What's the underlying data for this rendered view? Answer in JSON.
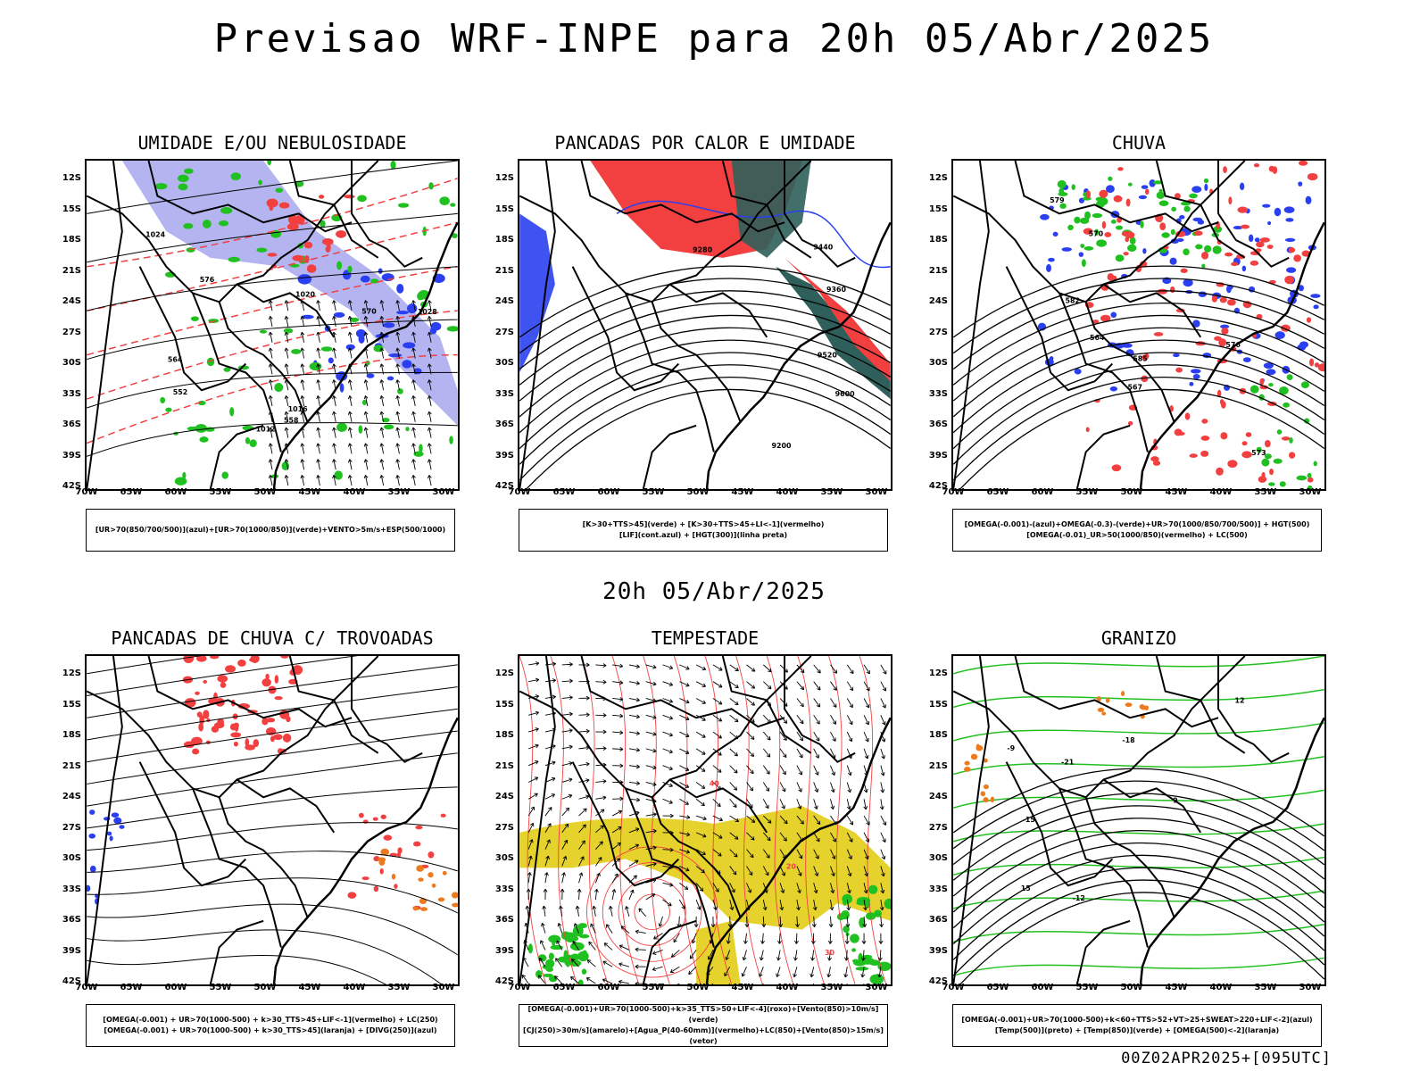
{
  "header": {
    "title": "Previsao WRF-INPE  para 20h 05/Abr/2025"
  },
  "mid_date": "20h 05/Abr/2025",
  "footer": "00Z02APR2025+[095UTC]",
  "axes": {
    "lat_labels": [
      "12S",
      "15S",
      "18S",
      "21S",
      "24S",
      "27S",
      "30S",
      "33S",
      "36S",
      "39S",
      "42S"
    ],
    "lon_labels": [
      "70W",
      "65W",
      "60W",
      "55W",
      "50W",
      "45W",
      "40W",
      "35W",
      "30W"
    ]
  },
  "panels": [
    {
      "title": "UMIDADE E/OU NEBULOSIDADE",
      "legend": [
        "[UR>70(850/700/500)](azul)+[UR>70(1000/850)](verde)+VENTO>5m/s+ESP(500/1000)"
      ],
      "labels": [
        "1012",
        "1016",
        "1020",
        "1024",
        "1028",
        "552",
        "558",
        "564",
        "570",
        "576"
      ]
    },
    {
      "title": "PANCADAS POR CALOR E UMIDADE",
      "legend": [
        "[K>30+TTS>45](verde)  +  [K>30+TTS>45+LI<-1](vermelho)",
        "[LIF](cont.azul)  +  [HGT(300)](linha preta)"
      ],
      "labels": [
        "9600",
        "9520",
        "9440",
        "9360",
        "9280",
        "9200"
      ]
    },
    {
      "title": "CHUVA",
      "legend": [
        "[OMEGA(-0.001)-(azul)+OMEGA(-0.3)-(verde)+UR>70(1000/850/700/500)]  +  HGT(500)",
        "[OMEGA(-0.01)_UR>50(1000/850)(vermelho)  +  LC(500)"
      ],
      "labels": [
        "585",
        "582",
        "579",
        "576",
        "573",
        "570",
        "567",
        "564"
      ]
    },
    {
      "title": "PANCADAS DE CHUVA C/ TROVOADAS",
      "legend": [
        "[OMEGA(-0.001)  +  UR>70(1000-500)  +  k>30_TTS>45+LIF<-1](vermelho)  +  LC(250)",
        "[OMEGA(-0.001)  +  UR>70(1000-500)  +  k>30_TTS>45](laranja)  +  [DIVG(250)](azul)"
      ],
      "labels": []
    },
    {
      "title": "TEMPESTADE",
      "legend": [
        "[OMEGA(-0.001)+UR>70(1000-500)+k>35_TTS>50+LIF<-4](roxo)+[Vento(850)>10m/s](verde)",
        "[CJ(250)>30m/s](amarelo)+[Agua_P(40-60mm)](vermelho)+LC(850)+[Vento(850)>15m/s](vetor)"
      ],
      "labels": [
        "40",
        "30",
        "20"
      ]
    },
    {
      "title": "GRANIZO",
      "legend": [
        "[OMEGA(-0.001)+UR>70(1000-500)+k<60+TTS>52+VT>25+SWEAT>220+LIF<-2](azul)",
        "[Temp(500)](preto)  +  [Temp(850)](verde)  +  [OMEGA(500)<-2](laranja)"
      ],
      "labels": [
        "-9",
        "-12",
        "-15",
        "-18",
        "-21",
        "15",
        "12",
        "9"
      ]
    }
  ],
  "colors": {
    "red": "#f24040",
    "green": "#20c020",
    "blue": "#2a40f0",
    "lavender": "#b4b4f0",
    "darkteal": "#2f5f5a",
    "yellow": "#e6d22c",
    "orange": "#ee7a1e"
  }
}
